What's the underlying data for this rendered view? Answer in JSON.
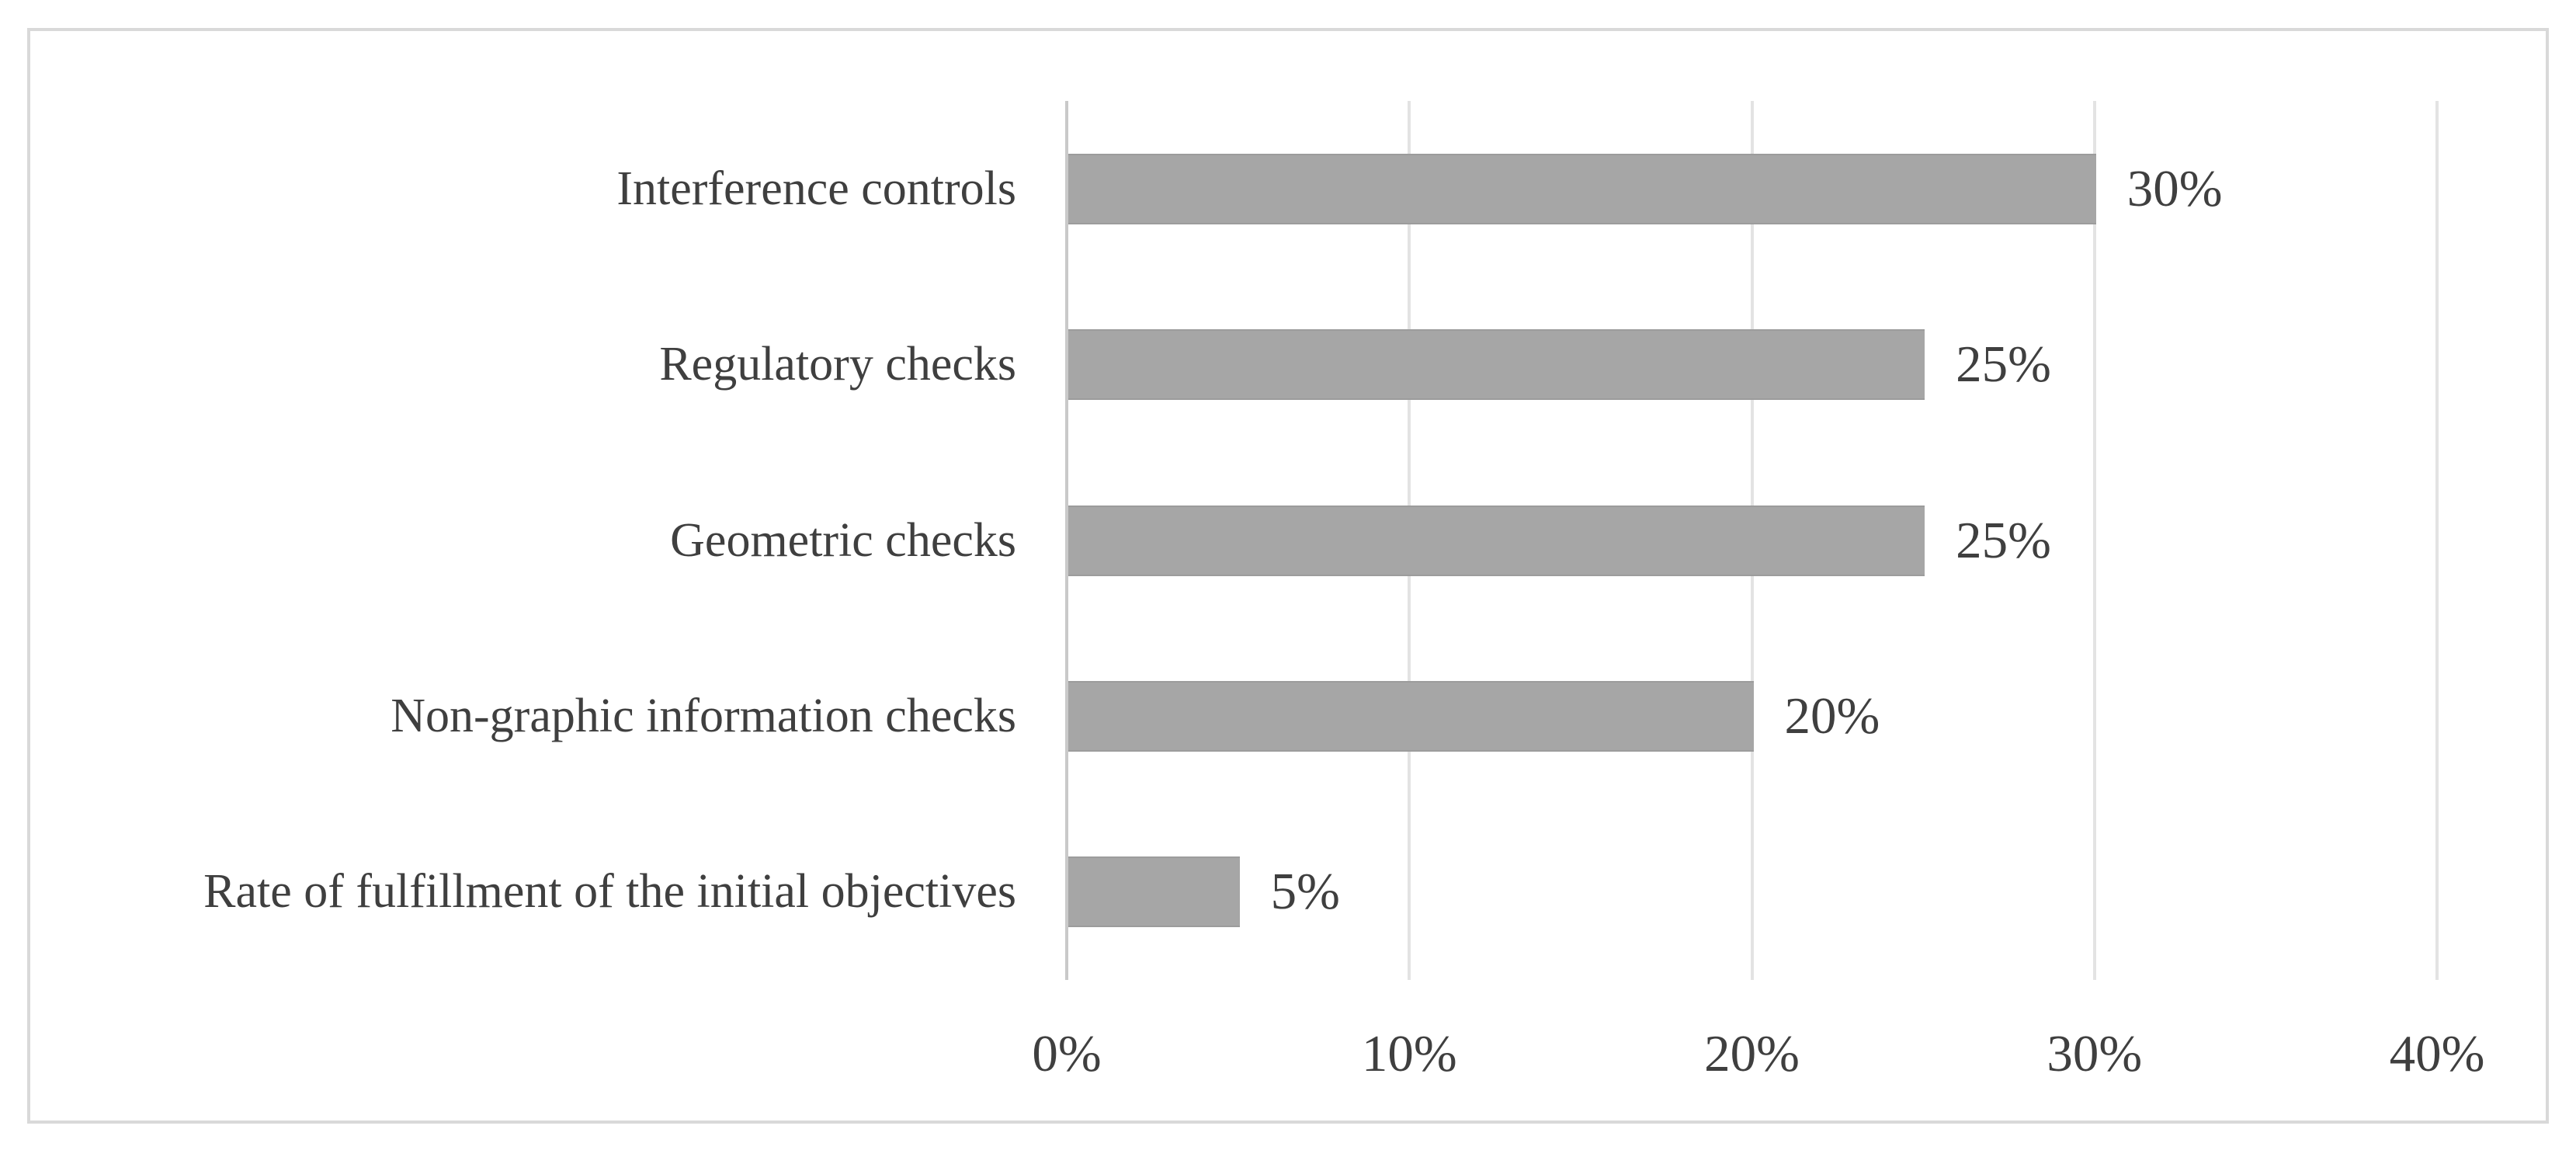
{
  "chart_data": {
    "type": "bar",
    "orientation": "horizontal",
    "title": "",
    "xlabel": "",
    "ylabel": "",
    "categories": [
      "Interference controls",
      "Regulatory checks",
      "Geometric checks",
      "Non-graphic information checks",
      "Rate of fulfillment of the initial objectives"
    ],
    "values": [
      30,
      25,
      25,
      20,
      5
    ],
    "value_labels": [
      "30%",
      "25%",
      "25%",
      "20%",
      "5%"
    ],
    "xticks": [
      "0%",
      "10%",
      "20%",
      "30%",
      "40%"
    ],
    "xtick_values": [
      0,
      10,
      20,
      30,
      40
    ],
    "xlim": [
      0,
      40
    ],
    "grid": true,
    "legend": false,
    "colors": {
      "bar": "#a6a6a6",
      "bar_edge": "#9c9c9c",
      "text": "#3f3f3f",
      "gridline": "#e3e3e3",
      "axis_line": "#c9c9c9",
      "figure_border": "#d9d9d9",
      "background": "#ffffff"
    }
  }
}
